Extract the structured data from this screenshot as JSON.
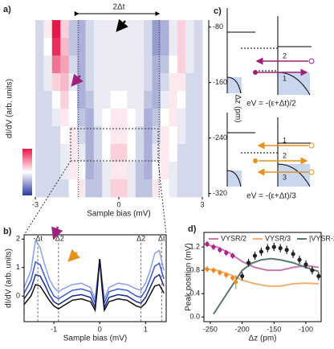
{
  "chart_data": [
    {
      "type": "heatmap",
      "panel_label": "a)",
      "xlabel": "Sample bias (mV)",
      "ylabel": "Δz (pm)",
      "zlabel": "dI/dV (arb. units)",
      "colorbar_label": "Hi",
      "annotation": "2Δt",
      "xlim": [
        -3,
        3
      ],
      "xticks": [
        -3,
        0,
        3
      ],
      "ylim": [
        -325,
        -70
      ],
      "yticks": [
        -80,
        -160,
        -240,
        -320
      ],
      "y_axis_side": "right",
      "guides": [
        -1.45,
        1.45
      ],
      "z": [
        [
          0.4,
          0.55,
          1.0,
          0.6,
          0.35,
          0.3,
          0.4,
          0.45,
          0.45,
          0.45,
          0.45,
          0.45,
          0.45,
          0.4,
          0.25,
          0.3,
          0.45,
          0.6,
          0.45,
          0.4
        ],
        [
          0.4,
          0.5,
          0.95,
          0.65,
          0.35,
          0.3,
          0.4,
          0.45,
          0.45,
          0.45,
          0.45,
          0.45,
          0.45,
          0.4,
          0.25,
          0.3,
          0.45,
          0.6,
          0.45,
          0.4
        ],
        [
          0.4,
          0.45,
          0.8,
          0.7,
          0.4,
          0.3,
          0.4,
          0.45,
          0.45,
          0.45,
          0.45,
          0.45,
          0.45,
          0.4,
          0.3,
          0.35,
          0.5,
          0.6,
          0.45,
          0.4
        ],
        [
          0.4,
          0.45,
          0.6,
          0.65,
          0.45,
          0.3,
          0.4,
          0.45,
          0.45,
          0.45,
          0.45,
          0.45,
          0.45,
          0.4,
          0.3,
          0.4,
          0.55,
          0.55,
          0.4,
          0.4
        ],
        [
          0.4,
          0.4,
          0.5,
          0.6,
          0.5,
          0.3,
          0.35,
          0.45,
          0.45,
          0.5,
          0.5,
          0.45,
          0.45,
          0.35,
          0.3,
          0.45,
          0.55,
          0.5,
          0.4,
          0.4
        ],
        [
          0.4,
          0.4,
          0.45,
          0.55,
          0.5,
          0.35,
          0.3,
          0.45,
          0.5,
          0.55,
          0.55,
          0.5,
          0.45,
          0.3,
          0.35,
          0.5,
          0.55,
          0.45,
          0.4,
          0.4
        ],
        [
          0.4,
          0.4,
          0.4,
          0.5,
          0.55,
          0.4,
          0.3,
          0.4,
          0.5,
          0.55,
          0.55,
          0.5,
          0.4,
          0.3,
          0.4,
          0.55,
          0.5,
          0.45,
          0.4,
          0.4
        ],
        [
          0.4,
          0.4,
          0.4,
          0.45,
          0.55,
          0.45,
          0.3,
          0.4,
          0.5,
          0.6,
          0.6,
          0.5,
          0.4,
          0.3,
          0.45,
          0.55,
          0.5,
          0.4,
          0.4,
          0.4
        ],
        [
          0.4,
          0.4,
          0.4,
          0.45,
          0.55,
          0.5,
          0.3,
          0.35,
          0.45,
          0.55,
          0.55,
          0.45,
          0.35,
          0.3,
          0.5,
          0.55,
          0.45,
          0.4,
          0.4,
          0.4
        ],
        [
          0.4,
          0.4,
          0.4,
          0.4,
          0.5,
          0.55,
          0.35,
          0.35,
          0.45,
          0.6,
          0.6,
          0.45,
          0.35,
          0.35,
          0.55,
          0.5,
          0.45,
          0.4,
          0.4,
          0.4
        ]
      ]
    },
    {
      "type": "line",
      "panel_label": "b)",
      "xlabel": "Sample bias (mV)",
      "ylabel": "dI/dV (arb. units)",
      "frame": true,
      "xlim": [
        -1.65,
        1.45
      ],
      "xticks": [
        -1,
        0,
        1
      ],
      "ylim": [
        -0.9,
        2.15
      ],
      "yticks": [
        0,
        1,
        2
      ],
      "guides": [
        {
          "value": -1.35,
          "label": "-Δt"
        },
        {
          "value": -0.9,
          "label": "-Δ2"
        },
        {
          "value": 0.9,
          "label": "Δ2"
        },
        {
          "value": 1.35,
          "label": "Δt"
        }
      ],
      "x": [
        -1.65,
        -1.5,
        -1.4,
        -1.3,
        -1.2,
        -1.1,
        -1.0,
        -0.9,
        -0.8,
        -0.6,
        -0.4,
        -0.2,
        -0.1,
        -0.05,
        0,
        0.05,
        0.1,
        0.2,
        0.4,
        0.6,
        0.8,
        0.9,
        1.0,
        1.1,
        1.2,
        1.3,
        1.4
      ],
      "series": [
        {
          "color": "#8aa0ea",
          "values": [
            0.3,
            0.9,
            1.95,
            1.7,
            1.1,
            0.6,
            0.3,
            0.15,
            0.25,
            0.4,
            0.45,
            0.3,
            -0.1,
            0.6,
            1.3,
            0.6,
            -0.1,
            0.3,
            0.45,
            0.4,
            0.25,
            0.2,
            0.45,
            0.9,
            1.5,
            1.6,
            0.9
          ]
        },
        {
          "color": "#3a5ad0",
          "values": [
            0.1,
            0.55,
            1.2,
            1.1,
            0.7,
            0.3,
            0.0,
            -0.1,
            0.0,
            0.2,
            0.25,
            0.15,
            -0.25,
            0.5,
            1.3,
            0.5,
            -0.25,
            0.15,
            0.25,
            0.2,
            0.0,
            -0.05,
            0.2,
            0.6,
            1.05,
            1.15,
            0.6
          ]
        },
        {
          "color": "#1a2a8a",
          "values": [
            -0.1,
            0.25,
            0.75,
            0.7,
            0.4,
            0.05,
            -0.2,
            -0.3,
            -0.2,
            0.0,
            0.05,
            -0.05,
            -0.4,
            0.4,
            1.3,
            0.4,
            -0.4,
            -0.05,
            0.05,
            0.0,
            -0.2,
            -0.25,
            -0.05,
            0.3,
            0.65,
            0.75,
            0.35
          ]
        },
        {
          "color": "#111111",
          "values": [
            -0.3,
            0.0,
            0.4,
            0.35,
            0.1,
            -0.15,
            -0.35,
            -0.45,
            -0.35,
            -0.15,
            -0.1,
            -0.2,
            -0.5,
            0.3,
            1.3,
            0.3,
            -0.5,
            -0.2,
            -0.1,
            -0.15,
            -0.35,
            -0.4,
            -0.25,
            0.05,
            0.35,
            0.4,
            0.1
          ]
        }
      ]
    },
    {
      "type": "line",
      "panel_label": "d)",
      "xlabel": "Δz (pm)",
      "ylabel": "Peak position (mV)",
      "frame": true,
      "legend": "top",
      "xlim": [
        -260,
        -76
      ],
      "xticks": [
        -250,
        -200,
        -150,
        -100
      ],
      "ylim": [
        -0.08,
        1.45
      ],
      "yticks": [
        {
          "value": 0,
          "label": "0.0"
        },
        0.4,
        0.8,
        1.2
      ],
      "series": [
        {
          "name": "VYSR/2",
          "color": "#c878b0",
          "x": [
            -260,
            -240,
            -220,
            -200,
            -180,
            -160,
            -140,
            -120,
            -100,
            -80
          ],
          "values": [
            1.25,
            1.2,
            1.1,
            0.95,
            0.85,
            0.8,
            0.8,
            0.85,
            0.88,
            0.85
          ]
        },
        {
          "name": "VYSR/3",
          "color": "#f0b070",
          "x": [
            -260,
            -240,
            -220,
            -200,
            -180,
            -160,
            -140,
            -120,
            -100,
            -80
          ],
          "values": [
            0.83,
            0.8,
            0.73,
            0.63,
            0.57,
            0.53,
            0.53,
            0.57,
            0.58,
            0.57
          ]
        },
        {
          "name": "|VYSR-2Δ|",
          "color": "#5a7a6a",
          "x": [
            -245,
            -230,
            -215,
            -200,
            -185,
            -170,
            -155,
            -140,
            -120,
            -100,
            -80
          ],
          "values": [
            0.05,
            0.3,
            0.55,
            0.8,
            0.92,
            0.98,
            1.0,
            0.98,
            0.93,
            0.85,
            0.78
          ]
        },
        {
          "color": "#b0208a",
          "marker": "circle",
          "x": [
            -255,
            -245,
            -235,
            -225,
            -215
          ],
          "values": [
            1.25,
            1.2,
            1.15,
            1.1,
            1.05
          ],
          "errors": [
            0.05,
            0.05,
            0.05,
            0.05,
            0.05
          ]
        },
        {
          "color": "#f08a20",
          "marker": "circle",
          "x": [
            -255,
            -245,
            -235,
            -225,
            -215,
            -210
          ],
          "values": [
            0.82,
            0.8,
            0.76,
            0.72,
            0.67,
            0.6
          ],
          "errors": [
            0.05,
            0.05,
            0.05,
            0.05,
            0.05,
            0.12
          ]
        },
        {
          "color": "#222222",
          "marker": "circle",
          "x": [
            -200,
            -190,
            -180,
            -170,
            -160,
            -150,
            -140,
            -130,
            -120,
            -110,
            -100,
            -90,
            -80
          ],
          "values": [
            0.7,
            0.93,
            1.05,
            1.12,
            1.18,
            1.2,
            1.18,
            1.15,
            1.08,
            0.98,
            0.9,
            0.8,
            0.7
          ],
          "errors": [
            0.07,
            0.07,
            0.07,
            0.07,
            0.07,
            0.07,
            0.07,
            0.07,
            0.07,
            0.07,
            0.07,
            0.07,
            0.07
          ]
        }
      ]
    }
  ],
  "diagram": {
    "panel_label": "c)",
    "top": {
      "labels": [
        "2",
        "1"
      ],
      "equation": "eV = -(ε+Δt)/2"
    },
    "bottom": {
      "labels": [
        "1",
        "2",
        "3"
      ],
      "equation": "eV = -(ε+Δt)/3"
    }
  }
}
